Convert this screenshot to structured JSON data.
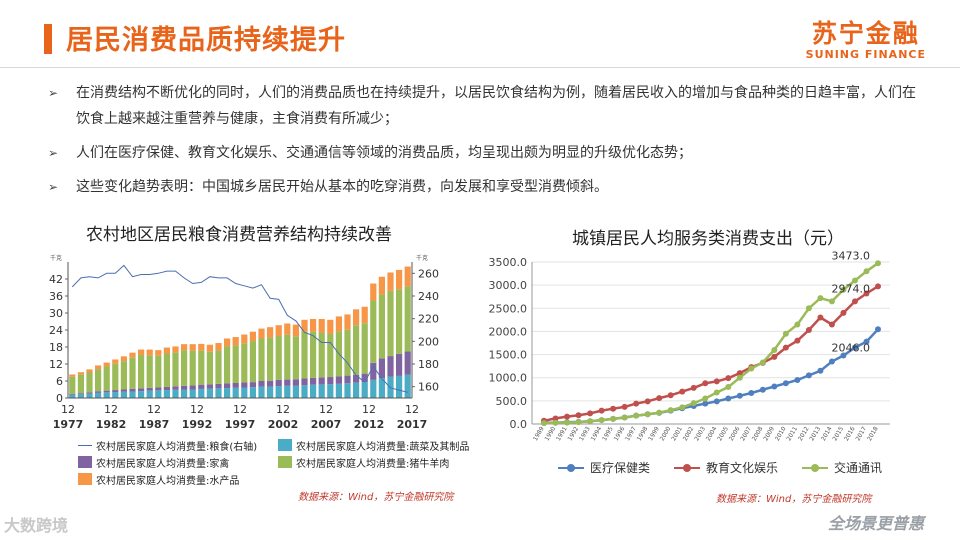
{
  "header": {
    "title": "居民消费品质持续提升",
    "logo_cn": "苏宁金融",
    "logo_en": "SUNING FINANCE"
  },
  "bullets": [
    {
      "icon": "arrow-bullet-icon",
      "text": "在消费结构不断优化的同时，人们的消费品质也在持续提升，以居民饮食结构为例，随着居民收入的增加与食品种类的日趋丰富，人们在饮食上越来越注重营养与健康，主食消费有所减少；"
    },
    {
      "icon": "arrow-bullet-icon",
      "text": "人们在医疗保健、教育文化娱乐、交通通信等领域的消费品质，均呈现出颇为明显的升级优化态势；"
    },
    {
      "icon": "arrow-bullet-icon",
      "text": "这些变化趋势表明：中国城乡居民开始从基本的吃穿消费，向发展和享受型消费倾斜。"
    }
  ],
  "watermarks": {
    "left": "大数跨境",
    "right": "全场景更普惠"
  },
  "chart_data": [
    {
      "type": "bar",
      "title": "农村地区居民粮食消费营养结构持续改善",
      "stacked": true,
      "source": "数据来源：Wind，苏宁金融研究院",
      "y_unit_left": "千克",
      "y_unit_right": "千克",
      "ylim_left": [
        0,
        48
      ],
      "yticks_left": [
        "0",
        "6",
        "12",
        "18",
        "24",
        "30",
        "36",
        "42"
      ],
      "ylim_right": [
        150,
        270
      ],
      "yticks_right": [
        "160",
        "180",
        "200",
        "220",
        "240",
        "260"
      ],
      "xticks": [
        {
          "top": "12",
          "bottom": "1977"
        },
        {
          "top": "12",
          "bottom": "1982"
        },
        {
          "top": "12",
          "bottom": "1987"
        },
        {
          "top": "12",
          "bottom": "1992"
        },
        {
          "top": "12",
          "bottom": "1997"
        },
        {
          "top": "12",
          "bottom": "2002"
        },
        {
          "top": "12",
          "bottom": "2007"
        },
        {
          "top": "12",
          "bottom": "2012"
        },
        {
          "top": "12",
          "bottom": "2017"
        }
      ],
      "categories": [
        1978,
        1979,
        1980,
        1981,
        1982,
        1983,
        1984,
        1985,
        1986,
        1987,
        1988,
        1989,
        1990,
        1991,
        1992,
        1993,
        1994,
        1995,
        1996,
        1997,
        1998,
        1999,
        2000,
        2001,
        2002,
        2003,
        2004,
        2005,
        2006,
        2007,
        2008,
        2009,
        2010,
        2011,
        2012,
        2013,
        2014,
        2015,
        2016,
        2017
      ],
      "series": [
        {
          "name": "农村居民家庭人均消费量:蔬菜及其制品",
          "color": "#4bacc6",
          "axis": "left",
          "values": [
            1.2,
            1.3,
            1.5,
            1.8,
            2.0,
            2.1,
            2.2,
            2.3,
            2.4,
            2.6,
            2.7,
            2.8,
            2.9,
            3.0,
            3.0,
            3.2,
            3.3,
            3.4,
            3.5,
            3.6,
            3.7,
            3.8,
            4.0,
            4.0,
            4.2,
            4.3,
            4.3,
            4.5,
            4.7,
            4.8,
            4.9,
            5.0,
            5.2,
            5.4,
            5.6,
            6.4,
            7.0,
            7.5,
            7.8,
            8.2
          ]
        },
        {
          "name": "农村居民家庭人均消费量:家禽",
          "color": "#8064a2",
          "axis": "left",
          "values": [
            0.3,
            0.4,
            0.5,
            0.6,
            0.6,
            0.7,
            0.8,
            0.9,
            1.0,
            1.0,
            1.0,
            1.1,
            1.2,
            1.3,
            1.4,
            1.5,
            1.5,
            1.6,
            1.7,
            1.7,
            1.8,
            1.8,
            2.0,
            2.1,
            2.2,
            2.2,
            2.3,
            2.4,
            2.4,
            2.5,
            2.5,
            2.6,
            2.7,
            2.8,
            3.0,
            6.0,
            7.0,
            7.3,
            7.8,
            8.2
          ]
        },
        {
          "name": "农村居民家庭人均消费量:猪牛羊肉",
          "color": "#9bbb59",
          "axis": "left",
          "values": [
            6.0,
            6.5,
            7.0,
            7.8,
            8.5,
            9.3,
            10.0,
            11.0,
            11.8,
            11.5,
            11.2,
            11.8,
            12.0,
            12.5,
            12.3,
            12.0,
            11.5,
            11.8,
            13.0,
            13.2,
            13.8,
            14.5,
            15.0,
            15.3,
            15.5,
            15.8,
            15.2,
            16.5,
            16.3,
            15.8,
            15.2,
            16.0,
            16.2,
            17.5,
            17.8,
            22.0,
            22.5,
            23.0,
            22.8,
            23.0
          ]
        },
        {
          "name": "农村居民家庭人均消费量:水产品",
          "color": "#f79646",
          "axis": "left",
          "values": [
            0.8,
            0.9,
            1.1,
            1.3,
            1.4,
            1.5,
            1.7,
            1.8,
            1.9,
            2.0,
            2.0,
            2.1,
            2.1,
            2.2,
            2.3,
            2.4,
            2.5,
            2.6,
            2.8,
            3.0,
            3.1,
            3.3,
            3.5,
            3.6,
            3.8,
            4.0,
            4.1,
            4.2,
            4.5,
            4.8,
            5.0,
            5.2,
            5.4,
            5.6,
            5.8,
            6.0,
            6.3,
            6.5,
            6.8,
            7.0
          ]
        },
        {
          "name": "农村居民家庭人均消费量:粮食(右轴)",
          "color": "#4a6fb0",
          "axis": "right",
          "chart": "line",
          "values": [
            248,
            256,
            257,
            256,
            260,
            260,
            267,
            257,
            259,
            259,
            260,
            262,
            262,
            256,
            251,
            252,
            257,
            256,
            256,
            251,
            249,
            247,
            250,
            238,
            237,
            223,
            218,
            208,
            205,
            199,
            199,
            189,
            181,
            170,
            164,
            178,
            167,
            159,
            157,
            155
          ]
        }
      ]
    },
    {
      "type": "line",
      "title": "城镇居民人均服务类消费支出（元）",
      "source": "数据来源：Wind，苏宁金融研究院",
      "ylim": [
        0,
        3500
      ],
      "yticks": [
        "0.0",
        "500.0",
        "1000.0",
        "1500.0",
        "2000.0",
        "2500.0",
        "3000.0",
        "3500.0"
      ],
      "x": [
        "1989",
        "1990",
        "1991",
        "1992",
        "1993",
        "1994",
        "1995",
        "1996",
        "1997",
        "1998",
        "1999",
        "2000",
        "2001",
        "2002",
        "2003",
        "2004",
        "2005",
        "2006",
        "2007",
        "2008",
        "2009",
        "2010",
        "2011",
        "2012",
        "2013",
        "2014",
        "2015",
        "2016",
        "2017",
        "2018"
      ],
      "series": [
        {
          "name": "医疗保健类",
          "color": "#4f7fbe",
          "values": [
            25,
            30,
            38,
            45,
            60,
            85,
            110,
            140,
            180,
            210,
            240,
            290,
            340,
            390,
            440,
            490,
            550,
            610,
            670,
            740,
            810,
            880,
            950,
            1050,
            1150,
            1350,
            1480,
            1650,
            1780,
            2046
          ]
        },
        {
          "name": "教育文化娱乐",
          "color": "#c0504d",
          "values": [
            70,
            120,
            160,
            190,
            230,
            290,
            330,
            370,
            440,
            490,
            560,
            620,
            700,
            780,
            880,
            920,
            990,
            1100,
            1230,
            1320,
            1450,
            1650,
            1800,
            2030,
            2300,
            2150,
            2400,
            2650,
            2820,
            2974
          ]
        },
        {
          "name": "交通通讯",
          "color": "#9bbb59",
          "values": [
            20,
            25,
            30,
            40,
            60,
            85,
            110,
            140,
            180,
            210,
            245,
            300,
            360,
            450,
            550,
            680,
            800,
            1000,
            1200,
            1330,
            1600,
            1950,
            2150,
            2500,
            2720,
            2650,
            2900,
            3100,
            3300,
            3473
          ]
        }
      ],
      "data_labels": [
        "3473.0",
        "2974.0",
        "2046.0"
      ]
    }
  ]
}
